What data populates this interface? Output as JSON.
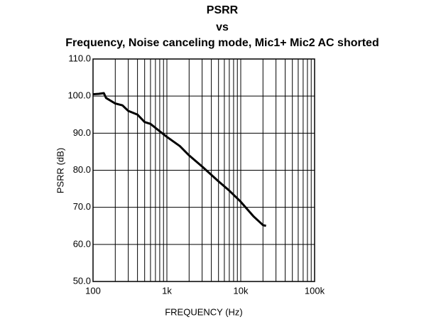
{
  "chart_data": {
    "type": "line",
    "title": [
      "PSRR",
      "vs",
      "Frequency, Noise canceling mode, Mic1+ Mic2 AC shorted"
    ],
    "x_label": "FREQUENCY (Hz)",
    "y_label": "PSRR (dB)",
    "x": [
      100,
      120,
      140,
      150,
      200,
      250,
      300,
      400,
      500,
      600,
      800,
      1000,
      1500,
      2000,
      3000,
      5000,
      7000,
      10000,
      15000,
      20000,
      22000
    ],
    "series": [
      {
        "color": "#000000",
        "values": [
          100.5,
          100.6,
          100.8,
          99.5,
          98,
          97.5,
          96,
          95,
          93,
          92.5,
          90.5,
          89,
          86.5,
          84,
          81,
          77,
          74.5,
          71.5,
          67.5,
          65.2,
          65
        ]
      }
    ],
    "xlim": [
      100,
      100000
    ],
    "x_log": true,
    "xticks": [
      100,
      {
        "value": 1000,
        "label": "1k"
      },
      {
        "value": 10000,
        "label": "10k"
      },
      {
        "value": 100000,
        "label": "100k"
      }
    ],
    "ylim": [
      50,
      110
    ],
    "yticks": [
      {
        "value": 50,
        "label": "50.0"
      },
      {
        "value": 60,
        "label": "60.0"
      },
      {
        "value": 70,
        "label": "70.0"
      },
      {
        "value": 80,
        "label": "80.0"
      },
      {
        "value": 90,
        "label": "90.0"
      },
      {
        "value": 100,
        "label": "100.0"
      },
      {
        "value": 110,
        "label": "110.0"
      }
    ],
    "grid": true
  }
}
